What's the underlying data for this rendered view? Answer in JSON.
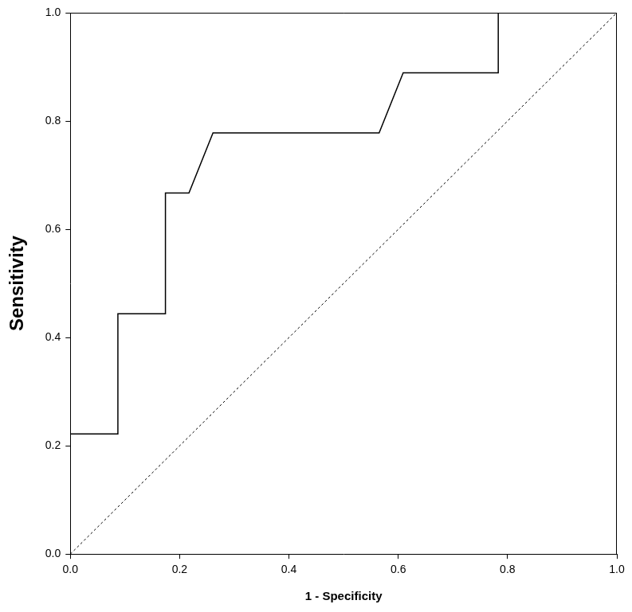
{
  "chart_data": {
    "type": "line",
    "xlabel": "1 - Specificity",
    "ylabel": "Sensitivity",
    "series": [
      {
        "x": [
          0,
          0,
          0.087,
          0.087,
          0.174,
          0.174,
          0.217,
          0.261,
          0.565,
          0.609,
          0.783,
          0.783,
          1.0
        ],
        "values": [
          0,
          0.222,
          0.222,
          0.444,
          0.444,
          0.667,
          0.667,
          0.778,
          0.778,
          0.889,
          0.889,
          1.0,
          1.0
        ],
        "color": "#000000",
        "line_style": "solid",
        "marker": "none"
      },
      {
        "x": [
          0,
          1.0
        ],
        "values": [
          0,
          1.0
        ],
        "color": "#000000",
        "line_style": "dashed",
        "marker": "none"
      }
    ],
    "xlim": [
      0,
      1.0
    ],
    "ylim": [
      0,
      1.0
    ],
    "xticks": [
      {
        "value": 0,
        "label": "0.0"
      },
      0.2,
      0.4,
      0.6,
      0.8,
      {
        "value": 1.0,
        "label": "1.0"
      }
    ],
    "yticks": [
      {
        "value": 0,
        "label": "0.0"
      },
      0.2,
      0.4,
      0.6,
      0.8,
      {
        "value": 1.0,
        "label": "1.0"
      }
    ],
    "grid": false
  }
}
